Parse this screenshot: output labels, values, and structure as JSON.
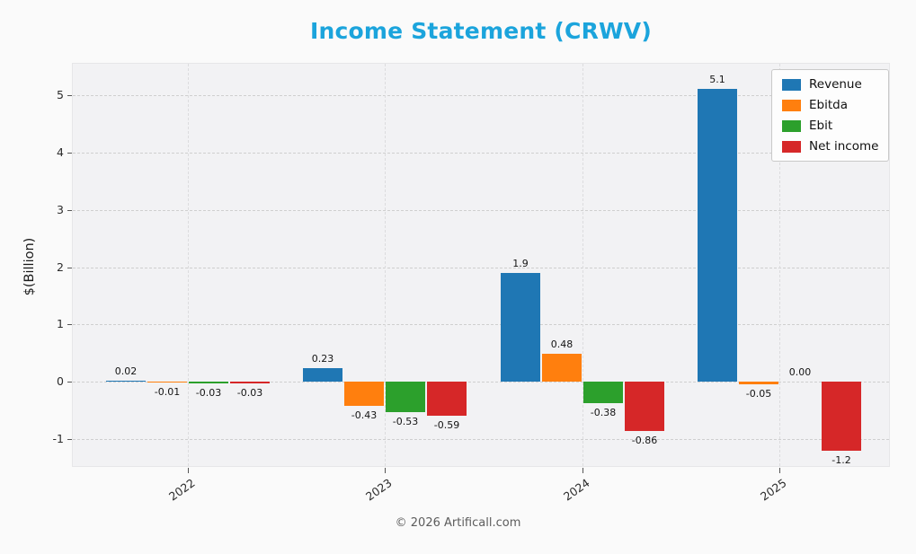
{
  "title": "Income Statement (CRWV)",
  "footer": "© 2026 Artificall.com",
  "chart_data": {
    "type": "bar",
    "title": "Income Statement (CRWV)",
    "xlabel": "",
    "ylabel": "$(Billion)",
    "categories": [
      "2022",
      "2023",
      "2024",
      "2025"
    ],
    "series": [
      {
        "name": "Revenue",
        "color": "#1f77b4",
        "values": [
          0.02,
          0.23,
          1.9,
          5.1
        ],
        "labels": [
          "0.02",
          "0.23",
          "1.9",
          "5.1"
        ]
      },
      {
        "name": "Ebitda",
        "color": "#ff7f0e",
        "values": [
          -0.01,
          -0.43,
          0.48,
          -0.05
        ],
        "labels": [
          "-0.01",
          "-0.43",
          "0.48",
          "-0.05"
        ]
      },
      {
        "name": "Ebit",
        "color": "#2ca02c",
        "values": [
          -0.03,
          -0.53,
          -0.38,
          0.0
        ],
        "labels": [
          "-0.03",
          "-0.53",
          "-0.38",
          "0.00"
        ]
      },
      {
        "name": "Net income",
        "color": "#d62728",
        "values": [
          -0.03,
          -0.59,
          -0.86,
          -1.2
        ],
        "labels": [
          "-0.03",
          "-0.59",
          "-0.86",
          "-1.2"
        ]
      }
    ],
    "yticks": [
      -1,
      0,
      1,
      2,
      3,
      4,
      5
    ],
    "ylim": [
      -1.5,
      5.55
    ],
    "grid": true,
    "grid_style": "dashed",
    "legend_position": "upper right"
  }
}
